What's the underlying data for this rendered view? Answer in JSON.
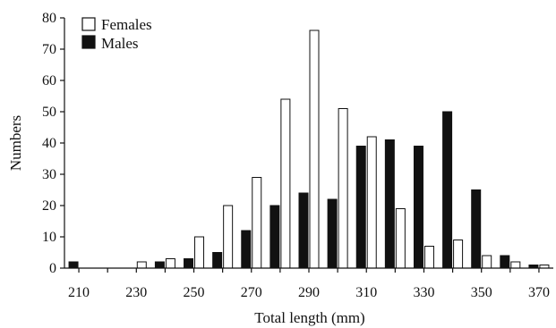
{
  "chart_data": {
    "type": "bar",
    "xlabel": "Total length (mm)",
    "ylabel": "Numbers",
    "x": [
      210,
      220,
      230,
      240,
      250,
      260,
      270,
      280,
      290,
      300,
      310,
      320,
      330,
      340,
      350,
      360,
      370
    ],
    "x_tick_labels": [
      "210",
      "230",
      "250",
      "270",
      "290",
      "310",
      "330",
      "350",
      "370"
    ],
    "y_tick_labels": [
      "0",
      "10",
      "20",
      "30",
      "40",
      "50",
      "60",
      "70",
      "80"
    ],
    "ylim": [
      0,
      80
    ],
    "legend_position": "top-left",
    "series": [
      {
        "name": "Males",
        "color": "#111111",
        "values": [
          2,
          0,
          0,
          2,
          3,
          5,
          12,
          20,
          24,
          22,
          39,
          41,
          39,
          50,
          25,
          4,
          1
        ]
      },
      {
        "name": "Females",
        "color": "#ffffff",
        "values": [
          0,
          0,
          2,
          3,
          10,
          20,
          29,
          54,
          76,
          51,
          42,
          19,
          7,
          9,
          4,
          2,
          1
        ]
      }
    ]
  }
}
